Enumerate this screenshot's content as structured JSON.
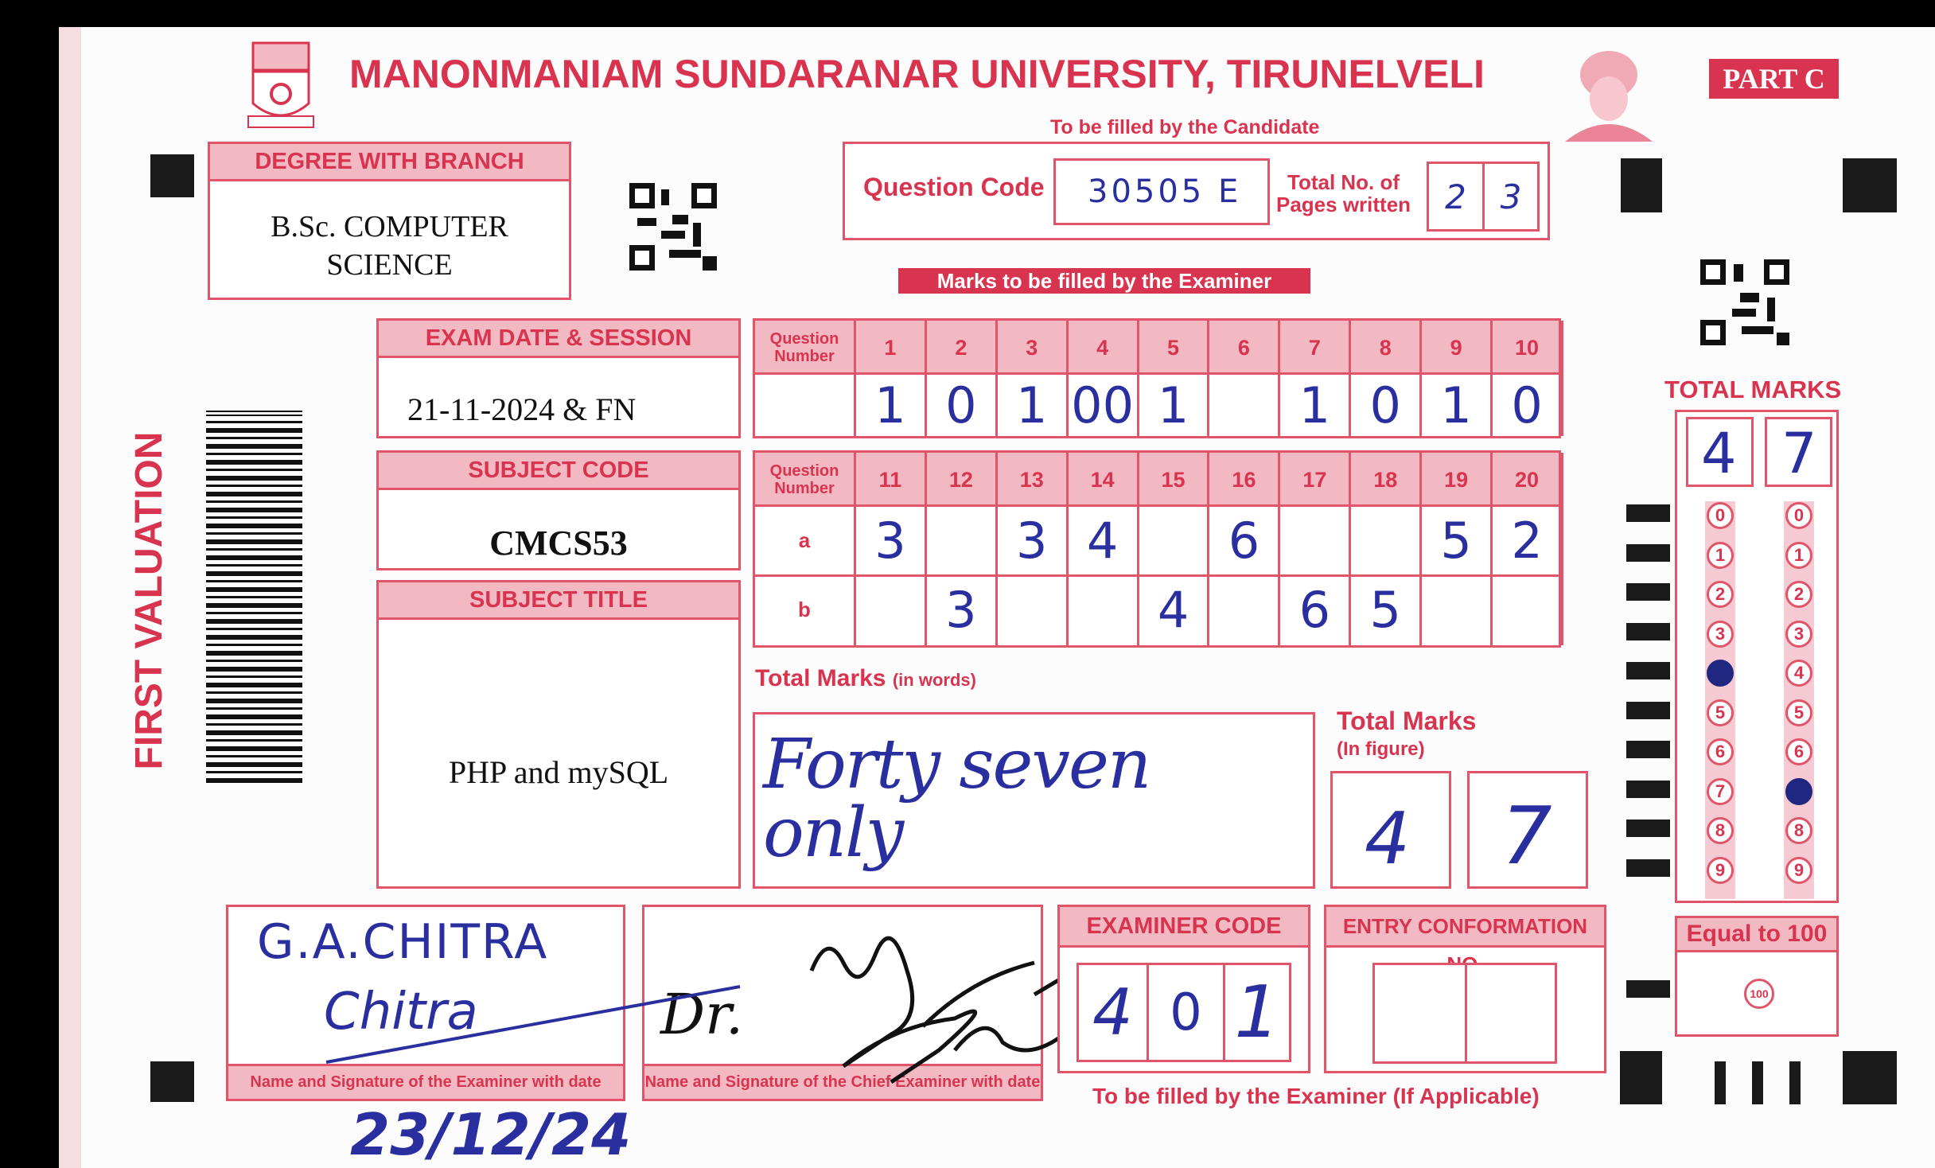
{
  "header": {
    "university": "MANONMANIAM SUNDARANAR UNIVERSITY, TIRUNELVELI",
    "part": "PART C",
    "candidate_note": "To be filled by the Candidate"
  },
  "candidate": {
    "question_code_label": "Question Code",
    "question_code": "30505 E",
    "pages_label_1": "Total No. of",
    "pages_label_2": "Pages written",
    "pages_digits": [
      "2",
      "3"
    ]
  },
  "degree": {
    "label": "DEGREE WITH BRANCH",
    "line1": "B.Sc. COMPUTER",
    "line2": "SCIENCE"
  },
  "exam": {
    "label": "EXAM DATE & SESSION",
    "value": "21-11-2024 & FN"
  },
  "subject_code": {
    "label": "SUBJECT CODE",
    "value": "CMCS53"
  },
  "subject_title": {
    "label": "SUBJECT TITLE",
    "value": "PHP and mySQL"
  },
  "side_label": "FIRST VALUATION",
  "examiner_banner": "Marks to be filled by the Examiner",
  "grid1": {
    "row_label": "Question Number",
    "questions": [
      "1",
      "2",
      "3",
      "4",
      "5",
      "6",
      "7",
      "8",
      "9",
      "10"
    ],
    "marks": [
      "1",
      "0",
      "1",
      "00",
      "1",
      "",
      "1",
      "0",
      "1",
      "0"
    ]
  },
  "grid2": {
    "row_label": "Question Number",
    "questions": [
      "11",
      "12",
      "13",
      "14",
      "15",
      "16",
      "17",
      "18",
      "19",
      "20"
    ],
    "row_a_label": "a",
    "row_a": [
      "3",
      "",
      "3",
      "4",
      "",
      "6",
      "",
      "",
      "5",
      "2"
    ],
    "row_b_label": "b",
    "row_b": [
      "",
      "3",
      "",
      "",
      "4",
      "",
      "6",
      "5",
      "",
      ""
    ]
  },
  "total_words": {
    "label": "Total Marks",
    "sub": "(in words)",
    "value": "Forty seven only"
  },
  "total_figure": {
    "label": "Total Marks",
    "sub": "(In figure)",
    "digits": [
      "4",
      "7"
    ]
  },
  "total_right": {
    "label": "TOTAL MARKS",
    "digits": [
      "4",
      "7"
    ],
    "bubbles": [
      "0",
      "1",
      "2",
      "3",
      "4",
      "5",
      "6",
      "7",
      "8",
      "9"
    ],
    "filled": [
      4,
      7
    ]
  },
  "equal": {
    "label": "Equal to 100",
    "bubble": "100"
  },
  "examiner_sig": {
    "label": "Name and Signature of the Examiner with date",
    "name": "G.A.CHITRA",
    "signature": "Chitra",
    "date": "23/12/24"
  },
  "chief_sig": {
    "label": "Name and Signature of the Chief Examiner with date",
    "signature": "Dr."
  },
  "examiner_code": {
    "label": "EXAMINER CODE",
    "digits": [
      "4",
      "0",
      "1"
    ]
  },
  "entry": {
    "label": "ENTRY CONFORMATION NO."
  },
  "footer_note": "To be filled by the Examiner (If Applicable)",
  "colors": {
    "form_red": "#d9344f",
    "ink_blue": "#2a2fa0",
    "header_pink": "#f3b9c3"
  }
}
